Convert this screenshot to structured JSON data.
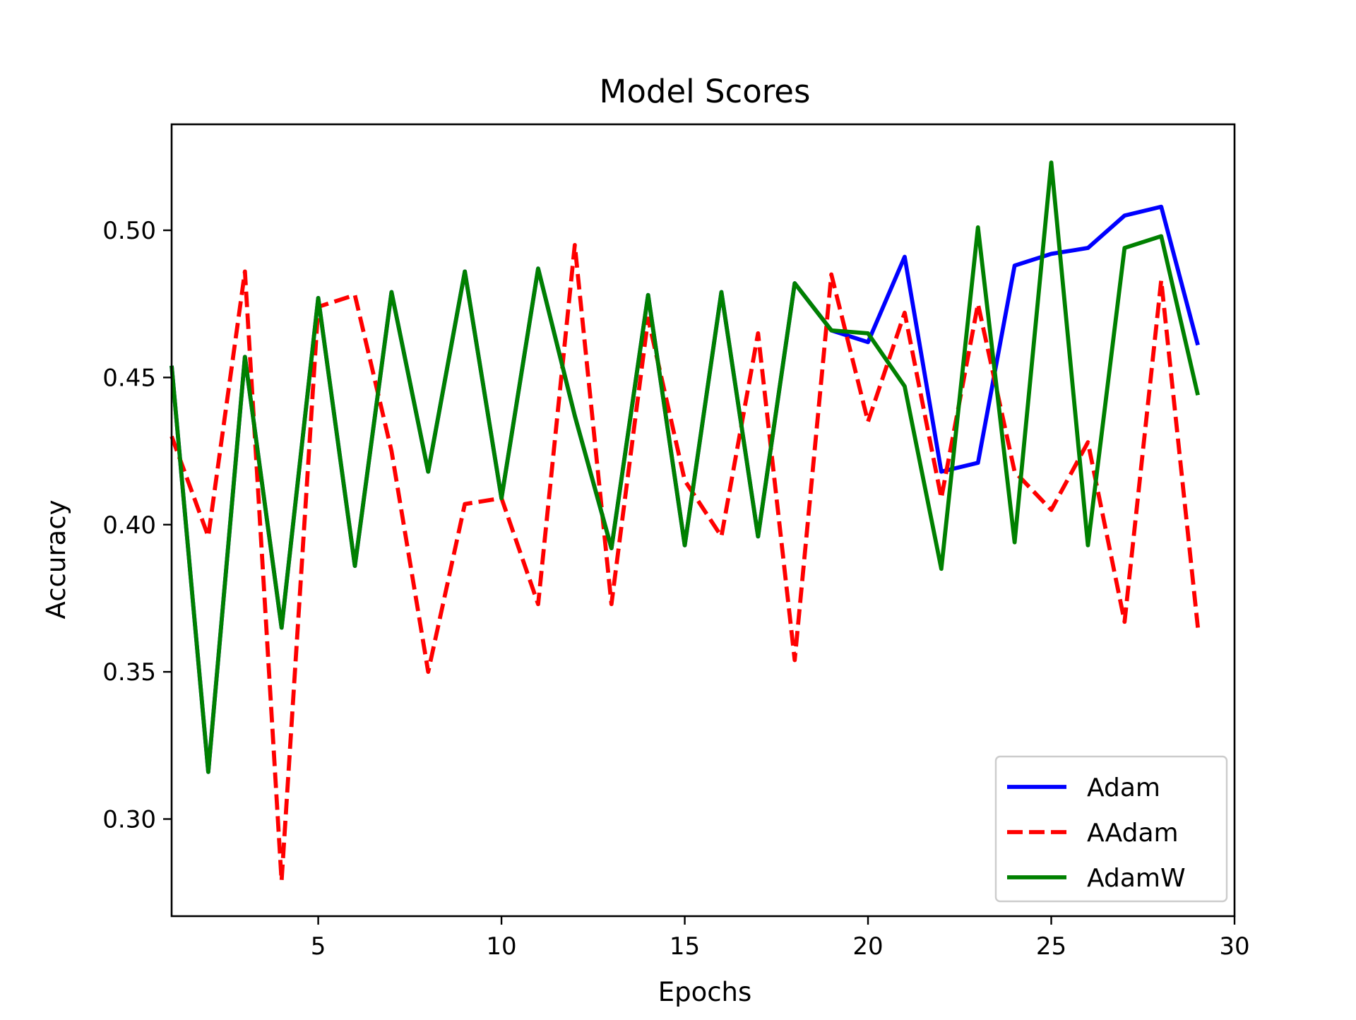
{
  "chart_data": {
    "type": "line",
    "title": "Model Scores",
    "xlabel": "Epochs",
    "ylabel": "Accuracy",
    "xlim": [
      1,
      30
    ],
    "ylim": [
      0.267,
      0.536
    ],
    "xticks": [
      5,
      10,
      15,
      20,
      25,
      30
    ],
    "xtick_labels": [
      "5",
      "10",
      "15",
      "20",
      "25",
      "30"
    ],
    "yticks": [
      0.3,
      0.35,
      0.4,
      0.45,
      0.5
    ],
    "ytick_labels": [
      "0.30",
      "0.35",
      "0.40",
      "0.45",
      "0.50"
    ],
    "grid": false,
    "legend_position": "bottom-right",
    "x": [
      1,
      2,
      3,
      4,
      5,
      6,
      7,
      8,
      9,
      10,
      11,
      12,
      13,
      14,
      15,
      16,
      17,
      18,
      19,
      20,
      21,
      22,
      23,
      24,
      25,
      26,
      27,
      28,
      29
    ],
    "series": [
      {
        "name": "Adam",
        "color": "#0000ff",
        "dash": "solid",
        "values": [
          0.454,
          0.316,
          0.457,
          0.365,
          0.477,
          0.386,
          0.479,
          0.418,
          0.486,
          0.409,
          0.487,
          0.437,
          0.392,
          0.478,
          0.393,
          0.479,
          0.396,
          0.482,
          0.466,
          0.462,
          0.491,
          0.418,
          0.421,
          0.488,
          0.492,
          0.494,
          0.505,
          0.508,
          0.461
        ]
      },
      {
        "name": "AAdam",
        "color": "#ff0000",
        "dash": "dashed",
        "values": [
          0.43,
          0.396,
          0.486,
          0.279,
          0.474,
          0.478,
          0.425,
          0.35,
          0.407,
          0.409,
          0.373,
          0.495,
          0.373,
          0.47,
          0.415,
          0.396,
          0.465,
          0.354,
          0.485,
          0.435,
          0.472,
          0.409,
          0.475,
          0.418,
          0.405,
          0.428,
          0.367,
          0.483,
          0.365
        ]
      },
      {
        "name": "AdamW",
        "color": "#008000",
        "dash": "solid",
        "values": [
          0.454,
          0.316,
          0.457,
          0.365,
          0.477,
          0.386,
          0.479,
          0.418,
          0.486,
          0.409,
          0.487,
          0.437,
          0.392,
          0.478,
          0.393,
          0.479,
          0.396,
          0.482,
          0.466,
          0.465,
          0.447,
          0.385,
          0.501,
          0.394,
          0.523,
          0.393,
          0.494,
          0.498,
          0.444
        ]
      }
    ]
  }
}
